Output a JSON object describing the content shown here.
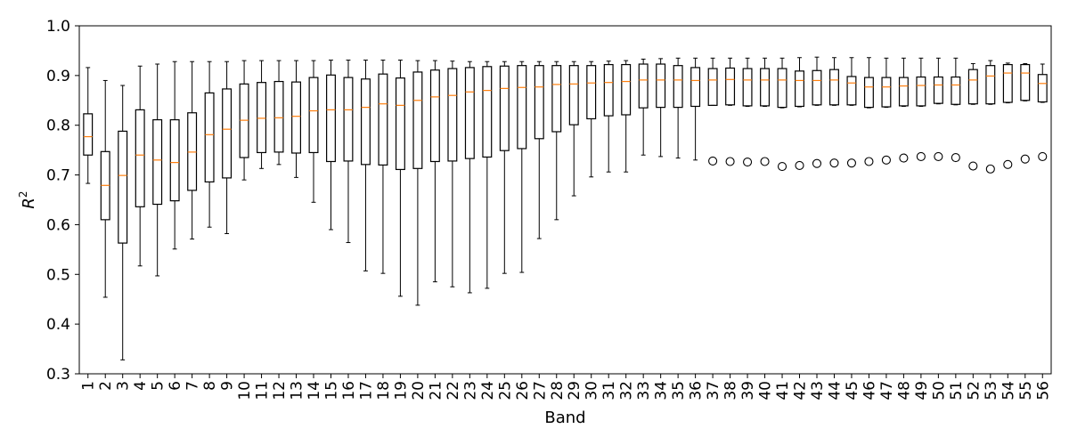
{
  "chart_data": {
    "type": "box",
    "xlabel": "Band",
    "ylabel": "R",
    "ylabel_superscript": "2",
    "ylim": [
      0.3,
      1.0
    ],
    "yticks": [
      "0.3",
      "0.4",
      "0.5",
      "0.6",
      "0.7",
      "0.8",
      "0.9",
      "1.0"
    ],
    "colors": {
      "box": "#000000",
      "median": "#ff7f0e",
      "whisker": "#000000",
      "flier": "#000000"
    },
    "categories": [
      "1",
      "2",
      "3",
      "4",
      "5",
      "6",
      "7",
      "8",
      "9",
      "10",
      "11",
      "12",
      "13",
      "14",
      "15",
      "16",
      "17",
      "18",
      "19",
      "20",
      "21",
      "22",
      "23",
      "24",
      "25",
      "26",
      "27",
      "28",
      "29",
      "30",
      "31",
      "32",
      "33",
      "34",
      "35",
      "36",
      "37",
      "38",
      "39",
      "40",
      "41",
      "42",
      "43",
      "44",
      "45",
      "46",
      "47",
      "48",
      "49",
      "50",
      "51",
      "52",
      "53",
      "54",
      "55",
      "56"
    ],
    "boxes": [
      {
        "band": "1",
        "whislo": 0.683,
        "q1": 0.74,
        "med": 0.777,
        "q3": 0.823,
        "whishi": 0.916,
        "fliers": []
      },
      {
        "band": "2",
        "whislo": 0.454,
        "q1": 0.61,
        "med": 0.679,
        "q3": 0.747,
        "whishi": 0.89,
        "fliers": []
      },
      {
        "band": "3",
        "whislo": 0.328,
        "q1": 0.563,
        "med": 0.699,
        "q3": 0.788,
        "whishi": 0.88,
        "fliers": []
      },
      {
        "band": "4",
        "whislo": 0.517,
        "q1": 0.636,
        "med": 0.74,
        "q3": 0.831,
        "whishi": 0.919,
        "fliers": []
      },
      {
        "band": "5",
        "whislo": 0.497,
        "q1": 0.641,
        "med": 0.73,
        "q3": 0.811,
        "whishi": 0.923,
        "fliers": []
      },
      {
        "band": "6",
        "whislo": 0.551,
        "q1": 0.648,
        "med": 0.725,
        "q3": 0.811,
        "whishi": 0.928,
        "fliers": []
      },
      {
        "band": "7",
        "whislo": 0.571,
        "q1": 0.669,
        "med": 0.746,
        "q3": 0.825,
        "whishi": 0.928,
        "fliers": []
      },
      {
        "band": "8",
        "whislo": 0.595,
        "q1": 0.686,
        "med": 0.781,
        "q3": 0.865,
        "whishi": 0.928,
        "fliers": []
      },
      {
        "band": "9",
        "whislo": 0.582,
        "q1": 0.694,
        "med": 0.792,
        "q3": 0.873,
        "whishi": 0.928,
        "fliers": []
      },
      {
        "band": "10",
        "whislo": 0.69,
        "q1": 0.735,
        "med": 0.81,
        "q3": 0.883,
        "whishi": 0.93,
        "fliers": []
      },
      {
        "band": "11",
        "whislo": 0.713,
        "q1": 0.745,
        "med": 0.814,
        "q3": 0.886,
        "whishi": 0.93,
        "fliers": []
      },
      {
        "band": "12",
        "whislo": 0.721,
        "q1": 0.746,
        "med": 0.815,
        "q3": 0.888,
        "whishi": 0.93,
        "fliers": []
      },
      {
        "band": "13",
        "whislo": 0.695,
        "q1": 0.744,
        "med": 0.818,
        "q3": 0.887,
        "whishi": 0.93,
        "fliers": []
      },
      {
        "band": "14",
        "whislo": 0.645,
        "q1": 0.745,
        "med": 0.829,
        "q3": 0.896,
        "whishi": 0.93,
        "fliers": []
      },
      {
        "band": "15",
        "whislo": 0.59,
        "q1": 0.727,
        "med": 0.831,
        "q3": 0.901,
        "whishi": 0.931,
        "fliers": []
      },
      {
        "band": "16",
        "whislo": 0.564,
        "q1": 0.728,
        "med": 0.831,
        "q3": 0.896,
        "whishi": 0.931,
        "fliers": []
      },
      {
        "band": "17",
        "whislo": 0.507,
        "q1": 0.721,
        "med": 0.836,
        "q3": 0.893,
        "whishi": 0.931,
        "fliers": []
      },
      {
        "band": "18",
        "whislo": 0.502,
        "q1": 0.72,
        "med": 0.843,
        "q3": 0.903,
        "whishi": 0.931,
        "fliers": []
      },
      {
        "band": "19",
        "whislo": 0.456,
        "q1": 0.711,
        "med": 0.84,
        "q3": 0.895,
        "whishi": 0.931,
        "fliers": []
      },
      {
        "band": "20",
        "whislo": 0.438,
        "q1": 0.713,
        "med": 0.85,
        "q3": 0.907,
        "whishi": 0.93,
        "fliers": []
      },
      {
        "band": "21",
        "whislo": 0.485,
        "q1": 0.727,
        "med": 0.857,
        "q3": 0.911,
        "whishi": 0.93,
        "fliers": []
      },
      {
        "band": "22",
        "whislo": 0.475,
        "q1": 0.728,
        "med": 0.86,
        "q3": 0.914,
        "whishi": 0.929,
        "fliers": []
      },
      {
        "band": "23",
        "whislo": 0.463,
        "q1": 0.733,
        "med": 0.867,
        "q3": 0.916,
        "whishi": 0.928,
        "fliers": []
      },
      {
        "band": "24",
        "whislo": 0.472,
        "q1": 0.736,
        "med": 0.87,
        "q3": 0.918,
        "whishi": 0.928,
        "fliers": []
      },
      {
        "band": "25",
        "whislo": 0.502,
        "q1": 0.749,
        "med": 0.874,
        "q3": 0.919,
        "whishi": 0.928,
        "fliers": []
      },
      {
        "band": "26",
        "whislo": 0.504,
        "q1": 0.753,
        "med": 0.876,
        "q3": 0.92,
        "whishi": 0.928,
        "fliers": []
      },
      {
        "band": "27",
        "whislo": 0.572,
        "q1": 0.773,
        "med": 0.877,
        "q3": 0.92,
        "whishi": 0.928,
        "fliers": []
      },
      {
        "band": "28",
        "whislo": 0.61,
        "q1": 0.787,
        "med": 0.882,
        "q3": 0.92,
        "whishi": 0.928,
        "fliers": []
      },
      {
        "band": "29",
        "whislo": 0.658,
        "q1": 0.801,
        "med": 0.883,
        "q3": 0.92,
        "whishi": 0.928,
        "fliers": []
      },
      {
        "band": "30",
        "whislo": 0.696,
        "q1": 0.813,
        "med": 0.885,
        "q3": 0.92,
        "whishi": 0.928,
        "fliers": []
      },
      {
        "band": "31",
        "whislo": 0.706,
        "q1": 0.819,
        "med": 0.886,
        "q3": 0.922,
        "whishi": 0.929,
        "fliers": []
      },
      {
        "band": "32",
        "whislo": 0.706,
        "q1": 0.821,
        "med": 0.888,
        "q3": 0.922,
        "whishi": 0.93,
        "fliers": []
      },
      {
        "band": "33",
        "whislo": 0.74,
        "q1": 0.835,
        "med": 0.891,
        "q3": 0.923,
        "whishi": 0.933,
        "fliers": []
      },
      {
        "band": "34",
        "whislo": 0.737,
        "q1": 0.836,
        "med": 0.891,
        "q3": 0.923,
        "whishi": 0.934,
        "fliers": []
      },
      {
        "band": "35",
        "whislo": 0.734,
        "q1": 0.836,
        "med": 0.891,
        "q3": 0.92,
        "whishi": 0.935,
        "fliers": []
      },
      {
        "band": "36",
        "whislo": 0.73,
        "q1": 0.838,
        "med": 0.89,
        "q3": 0.916,
        "whishi": 0.935,
        "fliers": []
      },
      {
        "band": "37",
        "whislo": 0.84,
        "q1": 0.84,
        "med": 0.891,
        "q3": 0.914,
        "whishi": 0.935,
        "fliers": [
          0.728
        ]
      },
      {
        "band": "38",
        "whislo": 0.84,
        "q1": 0.841,
        "med": 0.892,
        "q3": 0.915,
        "whishi": 0.935,
        "fliers": [
          0.727
        ]
      },
      {
        "band": "39",
        "whislo": 0.838,
        "q1": 0.839,
        "med": 0.891,
        "q3": 0.914,
        "whishi": 0.935,
        "fliers": [
          0.726
        ]
      },
      {
        "band": "40",
        "whislo": 0.838,
        "q1": 0.839,
        "med": 0.891,
        "q3": 0.914,
        "whishi": 0.935,
        "fliers": [
          0.727
        ]
      },
      {
        "band": "41",
        "whislo": 0.835,
        "q1": 0.836,
        "med": 0.891,
        "q3": 0.914,
        "whishi": 0.935,
        "fliers": [
          0.717
        ]
      },
      {
        "band": "42",
        "whislo": 0.837,
        "q1": 0.838,
        "med": 0.89,
        "q3": 0.909,
        "whishi": 0.936,
        "fliers": [
          0.719
        ]
      },
      {
        "band": "43",
        "whislo": 0.84,
        "q1": 0.841,
        "med": 0.89,
        "q3": 0.91,
        "whishi": 0.937,
        "fliers": [
          0.723
        ]
      },
      {
        "band": "44",
        "whislo": 0.84,
        "q1": 0.841,
        "med": 0.891,
        "q3": 0.912,
        "whishi": 0.936,
        "fliers": [
          0.724
        ]
      },
      {
        "band": "45",
        "whislo": 0.84,
        "q1": 0.841,
        "med": 0.885,
        "q3": 0.898,
        "whishi": 0.936,
        "fliers": [
          0.724
        ]
      },
      {
        "band": "46",
        "whislo": 0.835,
        "q1": 0.836,
        "med": 0.877,
        "q3": 0.896,
        "whishi": 0.936,
        "fliers": [
          0.727
        ]
      },
      {
        "band": "47",
        "whislo": 0.836,
        "q1": 0.837,
        "med": 0.877,
        "q3": 0.896,
        "whishi": 0.935,
        "fliers": [
          0.73
        ]
      },
      {
        "band": "48",
        "whislo": 0.838,
        "q1": 0.839,
        "med": 0.879,
        "q3": 0.896,
        "whishi": 0.935,
        "fliers": [
          0.734
        ]
      },
      {
        "band": "49",
        "whislo": 0.838,
        "q1": 0.839,
        "med": 0.88,
        "q3": 0.897,
        "whishi": 0.935,
        "fliers": [
          0.737
        ]
      },
      {
        "band": "50",
        "whislo": 0.843,
        "q1": 0.844,
        "med": 0.881,
        "q3": 0.897,
        "whishi": 0.935,
        "fliers": [
          0.737
        ]
      },
      {
        "band": "51",
        "whislo": 0.841,
        "q1": 0.842,
        "med": 0.881,
        "q3": 0.897,
        "whishi": 0.935,
        "fliers": [
          0.735
        ]
      },
      {
        "band": "52",
        "whislo": 0.842,
        "q1": 0.843,
        "med": 0.891,
        "q3": 0.912,
        "whishi": 0.924,
        "fliers": [
          0.718
        ]
      },
      {
        "band": "53",
        "whislo": 0.842,
        "q1": 0.843,
        "med": 0.899,
        "q3": 0.92,
        "whishi": 0.93,
        "fliers": [
          0.712
        ]
      },
      {
        "band": "54",
        "whislo": 0.845,
        "q1": 0.846,
        "med": 0.905,
        "q3": 0.922,
        "whishi": 0.925,
        "fliers": [
          0.721
        ]
      },
      {
        "band": "55",
        "whislo": 0.849,
        "q1": 0.85,
        "med": 0.905,
        "q3": 0.922,
        "whishi": 0.924,
        "fliers": [
          0.732
        ]
      },
      {
        "band": "56",
        "whislo": 0.846,
        "q1": 0.847,
        "med": 0.884,
        "q3": 0.902,
        "whishi": 0.923,
        "fliers": [
          0.737
        ]
      }
    ]
  }
}
